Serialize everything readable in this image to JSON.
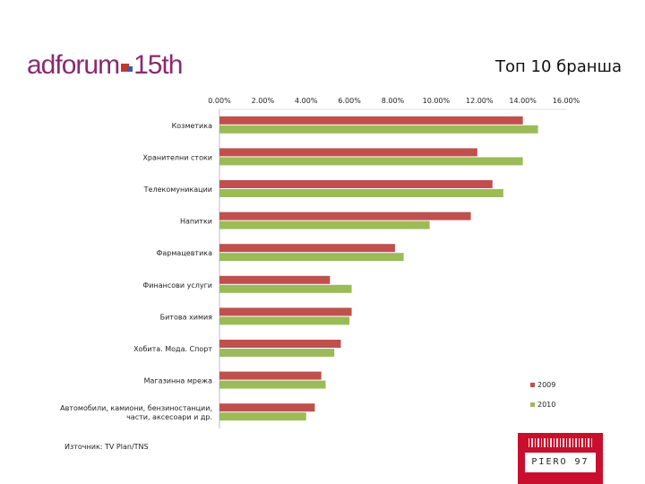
{
  "logo": {
    "prefix": "adforum",
    "suffix": "15th"
  },
  "page_title": "Топ 10 бранша",
  "source_note": "Източник: TV Plan/TNS",
  "brand_logo_text": "PIERO 97",
  "colors": {
    "series_2009": "#c0504d",
    "series_2010": "#9bbb59",
    "logo": "#8a2a6e",
    "brand": "#c8102e"
  },
  "chart_data": {
    "type": "bar",
    "orientation": "horizontal",
    "title": "",
    "xlabel": "",
    "ylabel": "",
    "xlim": [
      0,
      16
    ],
    "x_ticks": [
      "0.00%",
      "2.00%",
      "4.00%",
      "6.00%",
      "8.00%",
      "10.00%",
      "12.00%",
      "14.00%",
      "16.00%"
    ],
    "legend_position": "bottom-right",
    "grid": false,
    "categories": [
      [
        "Козметика"
      ],
      [
        "Хранителни стоки"
      ],
      [
        "Телекомуникации"
      ],
      [
        "Напитки"
      ],
      [
        "Фармацевтика"
      ],
      [
        "Финансови услуги"
      ],
      [
        "Битова химия"
      ],
      [
        "Хобита. Мода. Спорт"
      ],
      [
        "Магазинна мрежа"
      ],
      [
        "Автомобили, камиони, бензиностанции,",
        "части, аксесоари и др."
      ]
    ],
    "series": [
      {
        "name": "2009",
        "values": [
          14.0,
          11.9,
          12.6,
          11.6,
          8.1,
          5.1,
          6.1,
          5.6,
          4.7,
          4.4
        ]
      },
      {
        "name": "2010",
        "values": [
          14.7,
          14.0,
          13.1,
          9.7,
          8.5,
          6.1,
          6.0,
          5.3,
          4.9,
          4.0
        ]
      }
    ]
  }
}
